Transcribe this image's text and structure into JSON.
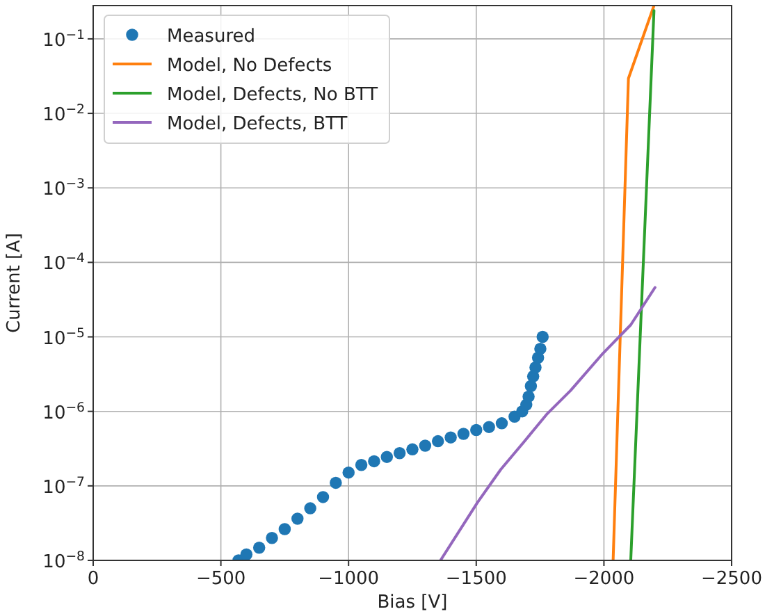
{
  "chart_data": {
    "type": "line",
    "xlabel": "Bias [V]",
    "ylabel": "Current [A]",
    "log": "y",
    "grid": true,
    "legend": "top left",
    "xlim": [
      0,
      -2500
    ],
    "xticks": [
      0,
      {
        "value": -500,
        "label": "−500"
      },
      {
        "value": -1000,
        "label": "−1000"
      },
      {
        "value": -1500,
        "label": "−1500"
      },
      {
        "value": -2000,
        "label": "−2000"
      },
      {
        "value": -2500,
        "label": "−2500"
      }
    ],
    "ylim": [
      1e-08,
      0.28
    ],
    "yticks": [
      {
        "value": 1e-08,
        "label": "10$^{−8}$"
      },
      {
        "value": 1e-07,
        "label": "10$^{−7}$"
      },
      {
        "value": 1e-06,
        "label": "10$^{−6}$"
      },
      {
        "value": 1e-05,
        "label": "10$^{−5}$"
      },
      {
        "value": 0.0001,
        "label": "10$^{−4}$"
      },
      {
        "value": 0.001,
        "label": "10$^{−3}$"
      },
      {
        "value": 0.01,
        "label": "10$^{−2}$"
      },
      {
        "value": 0.1,
        "label": "10$^{−1}$"
      }
    ],
    "series": [
      {
        "name": "Measured",
        "type": "scatter",
        "marker": "circle",
        "color": "#1f77b4",
        "x": [
          -569,
          -600,
          -650,
          -700,
          -750,
          -800,
          -850,
          -900,
          -950,
          -1000,
          -1050,
          -1100,
          -1150,
          -1200,
          -1250,
          -1300,
          -1350,
          -1400,
          -1450,
          -1500,
          -1550,
          -1600,
          -1650,
          -1680,
          -1696,
          -1705,
          -1714,
          -1723,
          -1732,
          -1742,
          -1751,
          -1760
        ],
        "values": [
          1e-08,
          1.2e-08,
          1.48e-08,
          2e-08,
          2.63e-08,
          3.63e-08,
          5e-08,
          7.08e-08,
          1.1e-07,
          1.51e-07,
          1.91e-07,
          2.14e-07,
          2.45e-07,
          2.75e-07,
          3.09e-07,
          3.47e-07,
          3.98e-07,
          4.47e-07,
          5e-07,
          5.62e-07,
          6.17e-07,
          6.92e-07,
          8.51e-07,
          1e-06,
          1.23e-06,
          1.58e-06,
          2.19e-06,
          2.95e-06,
          3.89e-06,
          5.25e-06,
          6.92e-06,
          1e-05
        ]
      },
      {
        "name": "Model, No Defects",
        "color": "#ff7f0e",
        "x": [
          -2036,
          -2096,
          -2196
        ],
        "values": [
          1e-08,
          0.0295,
          0.28
        ]
      },
      {
        "name": "Model, Defects, No BTT",
        "color": "#2ca02c",
        "x": [
          -2105,
          -2196
        ],
        "values": [
          1e-08,
          0.24
        ]
      },
      {
        "name": "Model, Defects, BTT",
        "color": "#9467bd",
        "x": [
          -1360,
          -1505,
          -1596,
          -1687,
          -1778,
          -1869,
          -1996,
          -2105,
          -2200
        ],
        "values": [
          1e-08,
          6e-08,
          1.66e-07,
          3.9e-07,
          9.3e-07,
          1.9e-06,
          6e-06,
          1.45e-05,
          4.6e-05
        ]
      }
    ]
  }
}
